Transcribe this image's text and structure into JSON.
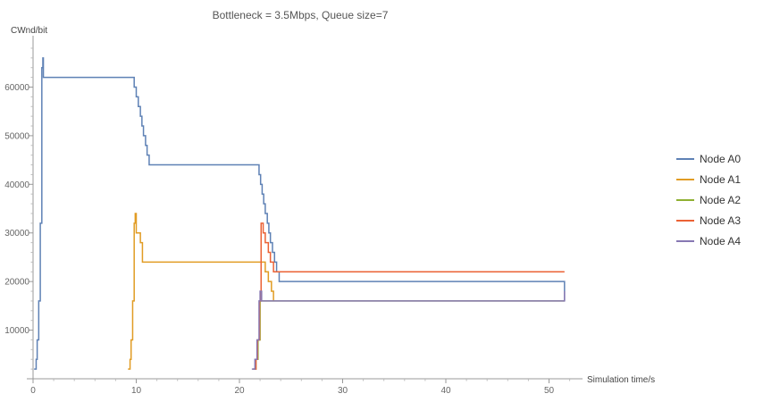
{
  "chart_data": {
    "type": "line",
    "title": "Bottleneck = 3.5Mbps, Queue size=7",
    "xlabel": "Simulation time/s",
    "ylabel": "CWnd/bit",
    "xlim": [
      -3,
      53.5
    ],
    "ylim": [
      0,
      70000
    ],
    "x_ticks": [
      0,
      10,
      20,
      30,
      40,
      50
    ],
    "y_ticks": [
      10000,
      20000,
      30000,
      40000,
      50000,
      60000
    ],
    "grid": false,
    "legend_position": "right",
    "series": [
      {
        "name": "Node A0",
        "color": "#5E81B5",
        "points": [
          [
            0.1,
            2000
          ],
          [
            0.3,
            2000
          ],
          [
            0.3,
            4000
          ],
          [
            0.4,
            4000
          ],
          [
            0.4,
            8000
          ],
          [
            0.55,
            8000
          ],
          [
            0.55,
            16000
          ],
          [
            0.7,
            16000
          ],
          [
            0.7,
            32000
          ],
          [
            0.85,
            32000
          ],
          [
            0.85,
            64000
          ],
          [
            0.95,
            64000
          ],
          [
            0.95,
            66000
          ],
          [
            1.0,
            66000
          ],
          [
            1.0,
            62000
          ],
          [
            9.8,
            62000
          ],
          [
            9.8,
            60000
          ],
          [
            10.0,
            60000
          ],
          [
            10.0,
            58000
          ],
          [
            10.2,
            58000
          ],
          [
            10.2,
            56000
          ],
          [
            10.4,
            56000
          ],
          [
            10.4,
            54000
          ],
          [
            10.55,
            54000
          ],
          [
            10.55,
            52000
          ],
          [
            10.7,
            52000
          ],
          [
            10.7,
            50000
          ],
          [
            10.9,
            50000
          ],
          [
            10.9,
            48000
          ],
          [
            11.05,
            48000
          ],
          [
            11.05,
            46000
          ],
          [
            11.25,
            46000
          ],
          [
            11.25,
            44000
          ],
          [
            21.9,
            44000
          ],
          [
            21.9,
            42000
          ],
          [
            22.05,
            42000
          ],
          [
            22.05,
            40000
          ],
          [
            22.2,
            40000
          ],
          [
            22.2,
            38000
          ],
          [
            22.35,
            38000
          ],
          [
            22.35,
            36000
          ],
          [
            22.5,
            36000
          ],
          [
            22.5,
            34000
          ],
          [
            22.7,
            34000
          ],
          [
            22.7,
            32000
          ],
          [
            22.85,
            32000
          ],
          [
            22.85,
            30000
          ],
          [
            23.0,
            30000
          ],
          [
            23.0,
            28000
          ],
          [
            23.2,
            28000
          ],
          [
            23.2,
            26000
          ],
          [
            23.4,
            26000
          ],
          [
            23.4,
            24000
          ],
          [
            23.6,
            24000
          ],
          [
            23.6,
            22000
          ],
          [
            23.85,
            22000
          ],
          [
            23.85,
            20000
          ],
          [
            51.5,
            20000
          ],
          [
            51.5,
            16000
          ]
        ]
      },
      {
        "name": "Node A1",
        "color": "#E19C24",
        "points": [
          [
            9.2,
            2000
          ],
          [
            9.4,
            2000
          ],
          [
            9.4,
            4000
          ],
          [
            9.5,
            4000
          ],
          [
            9.5,
            8000
          ],
          [
            9.65,
            8000
          ],
          [
            9.65,
            16000
          ],
          [
            9.8,
            16000
          ],
          [
            9.8,
            32000
          ],
          [
            9.9,
            32000
          ],
          [
            9.9,
            34000
          ],
          [
            10.0,
            34000
          ],
          [
            10.0,
            30000
          ],
          [
            10.4,
            30000
          ],
          [
            10.4,
            28000
          ],
          [
            10.6,
            28000
          ],
          [
            10.6,
            24000
          ],
          [
            22.5,
            24000
          ],
          [
            22.5,
            22000
          ],
          [
            22.8,
            22000
          ],
          [
            22.8,
            20000
          ],
          [
            23.1,
            20000
          ],
          [
            23.1,
            18000
          ],
          [
            23.3,
            18000
          ],
          [
            23.3,
            16000
          ]
        ]
      },
      {
        "name": "Node A2",
        "color": "#8FB032",
        "points": [
          [
            21.3,
            2000
          ],
          [
            21.6,
            2000
          ],
          [
            21.6,
            4000
          ],
          [
            21.8,
            4000
          ],
          [
            21.8,
            8000
          ],
          [
            22.0,
            8000
          ],
          [
            22.0,
            16000
          ],
          [
            51.5,
            16000
          ]
        ]
      },
      {
        "name": "Node A3",
        "color": "#EB6235",
        "points": [
          [
            21.35,
            2000
          ],
          [
            21.6,
            2000
          ],
          [
            21.6,
            4000
          ],
          [
            21.75,
            4000
          ],
          [
            21.75,
            8000
          ],
          [
            21.95,
            8000
          ],
          [
            21.95,
            16000
          ],
          [
            22.1,
            16000
          ],
          [
            22.1,
            32000
          ],
          [
            22.3,
            32000
          ],
          [
            22.3,
            30000
          ],
          [
            22.5,
            30000
          ],
          [
            22.5,
            28000
          ],
          [
            22.8,
            28000
          ],
          [
            22.8,
            26000
          ],
          [
            23.0,
            26000
          ],
          [
            23.0,
            24000
          ],
          [
            23.3,
            24000
          ],
          [
            23.3,
            22000
          ],
          [
            51.5,
            22000
          ]
        ]
      },
      {
        "name": "Node A4",
        "color": "#8778B3",
        "points": [
          [
            21.2,
            2000
          ],
          [
            21.5,
            2000
          ],
          [
            21.5,
            4000
          ],
          [
            21.7,
            4000
          ],
          [
            21.7,
            8000
          ],
          [
            21.9,
            8000
          ],
          [
            21.9,
            16000
          ],
          [
            22.0,
            16000
          ],
          [
            22.0,
            18000
          ],
          [
            22.15,
            18000
          ],
          [
            22.15,
            16000
          ],
          [
            51.5,
            16000
          ],
          [
            51.5,
            18000
          ]
        ]
      }
    ]
  }
}
